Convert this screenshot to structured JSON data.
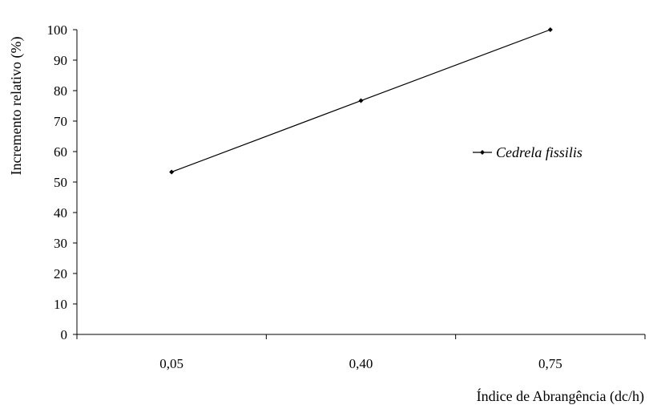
{
  "chart_data": {
    "type": "line",
    "xlabel": "Índice de Abrangência (dc/h)",
    "ylabel": "Incremento relativo (%)",
    "categories": [
      "0,05",
      "0,40",
      "0,75"
    ],
    "series": [
      {
        "name": "Cedrela fissilis",
        "values": [
          53.3,
          76.7,
          100
        ]
      }
    ],
    "ylim": [
      0,
      100
    ],
    "yticks": [
      "0",
      "10",
      "20",
      "30",
      "40",
      "50",
      "60",
      "70",
      "80",
      "90",
      "100"
    ],
    "grid": false,
    "legend": "right",
    "colors": {
      "line": "#000000",
      "axis": "#000000"
    }
  }
}
